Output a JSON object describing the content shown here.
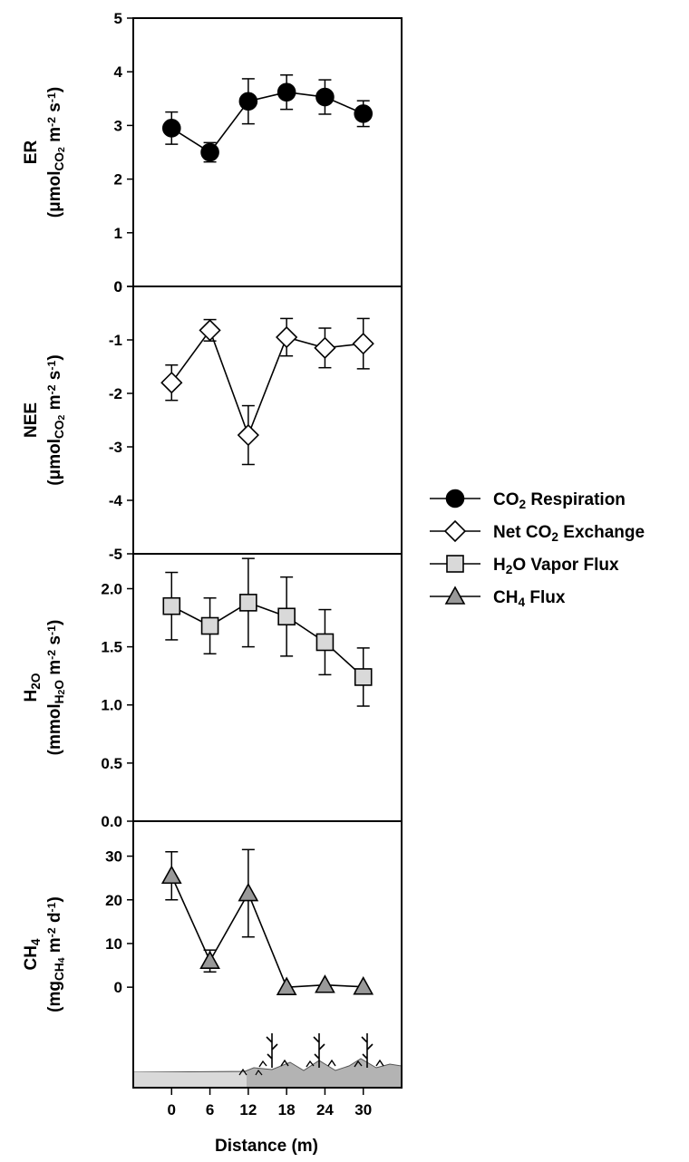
{
  "colors": {
    "er": "#000000",
    "nee": "#ffffff",
    "h2o": "#d9d9d9",
    "ch4": "#999999",
    "ground": "#b3b3b3",
    "ground_bare": "#d9d9d9"
  },
  "chart_data": {
    "type": "line",
    "x": [
      0,
      6,
      12,
      18,
      24,
      30
    ],
    "xlabel": "Distance (m)",
    "xlim": [
      -6,
      36
    ],
    "x_ticks": [
      "0",
      "6",
      "12",
      "18",
      "24",
      "30"
    ],
    "legend_position": "right",
    "panels": [
      {
        "key": "er",
        "ylabel": "ER",
        "units": [
          {
            "t": "(μmol"
          },
          {
            "t": "CO",
            "sub": true
          },
          {
            "t": "2",
            "sub2": true
          },
          {
            "t": " m"
          },
          {
            "t": "-2",
            "sup": true
          },
          {
            "t": " s"
          },
          {
            "t": "-1",
            "sup": true
          },
          {
            "t": ")"
          }
        ],
        "ylim": [
          0,
          5
        ],
        "y_ticks": [
          "0",
          "1",
          "2",
          "3",
          "4",
          "5"
        ],
        "marker": "circle",
        "series": {
          "name": "CO2 Respiration",
          "values": [
            2.95,
            2.5,
            3.45,
            3.62,
            3.53,
            3.22
          ],
          "error": [
            0.3,
            0.18,
            0.42,
            0.32,
            0.32,
            0.24
          ]
        }
      },
      {
        "key": "nee",
        "ylabel": "NEE",
        "units": [
          {
            "t": "(μmol"
          },
          {
            "t": "CO",
            "sub": true
          },
          {
            "t": "2",
            "sub2": true
          },
          {
            "t": " m"
          },
          {
            "t": "-2",
            "sup": true
          },
          {
            "t": " s"
          },
          {
            "t": "-1",
            "sup": true
          },
          {
            "t": ")"
          }
        ],
        "ylim": [
          -5,
          0
        ],
        "y_ticks": [
          "-5",
          "-4",
          "-3",
          "-2",
          "-1",
          "0"
        ],
        "marker": "diamond",
        "series": {
          "name": "Net CO2 Exchange",
          "values": [
            -1.8,
            -0.82,
            -2.78,
            -0.95,
            -1.15,
            -1.07
          ],
          "error": [
            0.33,
            0.2,
            0.55,
            0.35,
            0.37,
            0.47
          ]
        }
      },
      {
        "key": "h2o",
        "ylabel": "H2O",
        "units": [
          {
            "t": "(mmol"
          },
          {
            "t": "H",
            "sub": true
          },
          {
            "t": "2",
            "sub2": true
          },
          {
            "t": "O",
            "sub": true
          },
          {
            "t": " m"
          },
          {
            "t": "-2",
            "sup": true
          },
          {
            "t": " s"
          },
          {
            "t": "-1",
            "sup": true
          },
          {
            "t": ")"
          }
        ],
        "ylim": [
          0,
          2.3
        ],
        "y_ticks": [
          "0.0",
          "0.5",
          "1.0",
          "1.5",
          "2.0"
        ],
        "marker": "square",
        "series": {
          "name": "H2O Vapor Flux",
          "values": [
            1.85,
            1.68,
            1.88,
            1.76,
            1.54,
            1.24
          ],
          "error": [
            0.29,
            0.24,
            0.38,
            0.34,
            0.28,
            0.25
          ]
        }
      },
      {
        "key": "ch4",
        "ylabel": "CH4",
        "units": [
          {
            "t": "(mg"
          },
          {
            "t": "CH",
            "sub": true
          },
          {
            "t": "4",
            "sub2": true
          },
          {
            "t": " m"
          },
          {
            "t": "-2",
            "sup": true
          },
          {
            "t": " d"
          },
          {
            "t": "-1",
            "sup": true
          },
          {
            "t": ")"
          }
        ],
        "ylim": [
          -23,
          38
        ],
        "y_ticks": [
          "0",
          "10",
          "20",
          "30"
        ],
        "marker": "triangle",
        "series": {
          "name": "CH4 Flux",
          "values": [
            25.5,
            6.0,
            21.5,
            0.0,
            0.5,
            0.1
          ],
          "error": [
            5.5,
            2.5,
            10.0,
            0.0,
            0.0,
            0.0
          ]
        }
      }
    ],
    "legend": [
      {
        "key": "er",
        "marker": "circle",
        "parts": [
          {
            "t": "CO"
          },
          {
            "t": "2",
            "sub": true
          },
          {
            "t": " Respiration"
          }
        ]
      },
      {
        "key": "nee",
        "marker": "diamond",
        "parts": [
          {
            "t": "Net CO"
          },
          {
            "t": "2",
            "sub": true
          },
          {
            "t": " Exchange"
          }
        ]
      },
      {
        "key": "h2o",
        "marker": "square",
        "parts": [
          {
            "t": "H"
          },
          {
            "t": "2",
            "sub": true
          },
          {
            "t": "O Vapor Flux"
          }
        ]
      },
      {
        "key": "ch4",
        "marker": "triangle",
        "parts": [
          {
            "t": "CH"
          },
          {
            "t": "4",
            "sub": true
          },
          {
            "t": " Flux"
          }
        ]
      }
    ]
  }
}
